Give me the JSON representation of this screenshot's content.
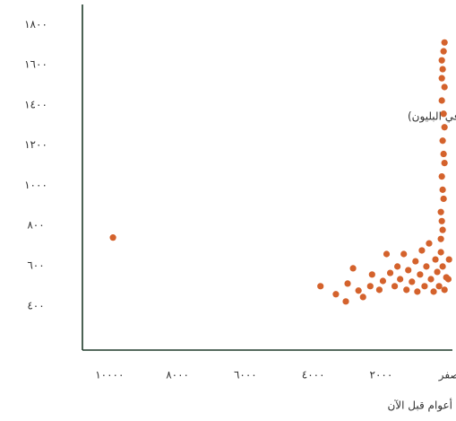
{
  "chart_data": {
    "type": "scatter",
    "annotation": "تركيز الميثان (جزء في البليون)",
    "x_label": "أعوام قبل الآن",
    "color": "#d4622c",
    "xlim": [
      10800,
      -100
    ],
    "ylim": [
      180,
      1900
    ],
    "xticks": [
      {
        "value": 10000,
        "label": "١٠٠٠٠"
      },
      {
        "value": 8000,
        "label": "٨٠٠٠"
      },
      {
        "value": 6000,
        "label": "٦٠٠٠"
      },
      {
        "value": 4000,
        "label": "٤٠٠٠"
      },
      {
        "value": 2000,
        "label": "٢٠٠٠"
      },
      {
        "value": 0,
        "label": "صفر"
      }
    ],
    "yticks": [
      {
        "value": 400,
        "label": "٤٠٠"
      },
      {
        "value": 600,
        "label": "٦٠٠"
      },
      {
        "value": 800,
        "label": "٨٠٠"
      },
      {
        "value": 1000,
        "label": "١٠٠٠"
      },
      {
        "value": 1200,
        "label": "١٢٠٠"
      },
      {
        "value": 1400,
        "label": "١٤٠٠"
      },
      {
        "value": 1600,
        "label": "١٦٠٠"
      },
      {
        "value": 1800,
        "label": "١٨٠٠"
      }
    ],
    "x": [
      9900,
      133,
      160,
      212,
      187,
      212,
      133,
      212,
      160,
      133,
      187,
      160,
      133,
      212,
      187,
      160,
      240,
      212,
      187,
      240,
      3787,
      3333,
      3040,
      2987,
      2827,
      2667,
      2533,
      2320,
      2267,
      2053,
      1947,
      1840,
      1733,
      1600,
      1520,
      1440,
      1333,
      1253,
      1200,
      1093,
      987,
      933,
      853,
      800,
      720,
      667,
      587,
      533,
      453,
      400,
      347,
      293,
      240,
      187,
      133,
      80,
      0,
      20
    ],
    "values": [
      740,
      1711,
      1667,
      1622,
      1578,
      1533,
      1489,
      1422,
      1356,
      1289,
      1222,
      1156,
      1111,
      1044,
      978,
      933,
      867,
      822,
      778,
      733,
      498,
      458,
      422,
      511,
      587,
      476,
      444,
      498,
      556,
      480,
      524,
      658,
      564,
      498,
      596,
      533,
      658,
      480,
      578,
      520,
      622,
      471,
      556,
      676,
      498,
      596,
      711,
      533,
      471,
      631,
      569,
      498,
      667,
      596,
      480,
      542,
      631,
      533
    ]
  }
}
